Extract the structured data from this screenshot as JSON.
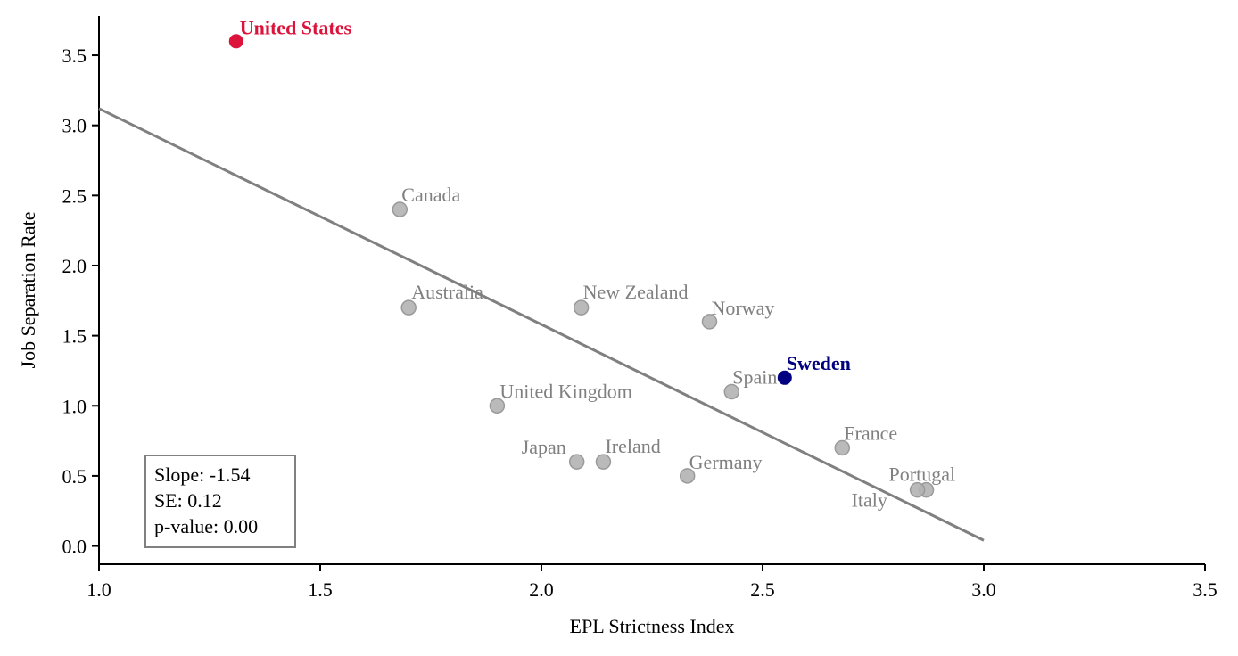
{
  "chart_data": {
    "type": "scatter",
    "xlabel": "EPL Strictness Index",
    "ylabel": "Job Separation Rate",
    "xlim": [
      1.0,
      3.5
    ],
    "ylim": [
      -0.13,
      3.78
    ],
    "x_ticks": [
      "1.0",
      "1.5",
      "2.0",
      "2.5",
      "3.0",
      "3.5"
    ],
    "y_ticks": [
      "0.0",
      "0.5",
      "1.0",
      "1.5",
      "2.0",
      "2.5",
      "3.0",
      "3.5"
    ],
    "points": [
      {
        "name": "United States",
        "x": 1.31,
        "y": 3.6,
        "highlight": "red"
      },
      {
        "name": "Canada",
        "x": 1.68,
        "y": 2.4
      },
      {
        "name": "Australia",
        "x": 1.7,
        "y": 1.7
      },
      {
        "name": "New Zealand",
        "x": 2.09,
        "y": 1.7
      },
      {
        "name": "Norway",
        "x": 2.38,
        "y": 1.6
      },
      {
        "name": "Sweden",
        "x": 2.55,
        "y": 1.2,
        "highlight": "blue"
      },
      {
        "name": "Spain",
        "x": 2.43,
        "y": 1.1
      },
      {
        "name": "United Kingdom",
        "x": 1.9,
        "y": 1.0
      },
      {
        "name": "Japan",
        "x": 2.08,
        "y": 0.6
      },
      {
        "name": "Ireland",
        "x": 2.14,
        "y": 0.6
      },
      {
        "name": "Germany",
        "x": 2.33,
        "y": 0.5
      },
      {
        "name": "France",
        "x": 2.68,
        "y": 0.7
      },
      {
        "name": "Portugal",
        "x": 2.87,
        "y": 0.4
      },
      {
        "name": "Italy",
        "x": 2.85,
        "y": 0.4
      }
    ],
    "regression_line": {
      "x": [
        1.0,
        3.0
      ],
      "y": [
        3.12,
        0.04
      ],
      "color": "#808080"
    },
    "stats_box": [
      "Slope: -1.54",
      "SE: 0.12",
      "p-value: 0.00"
    ],
    "colors": {
      "default_point": "#b3b3b3",
      "default_label": "#808080",
      "red": "#dc143c",
      "blue": "#000080"
    },
    "grid": false
  }
}
